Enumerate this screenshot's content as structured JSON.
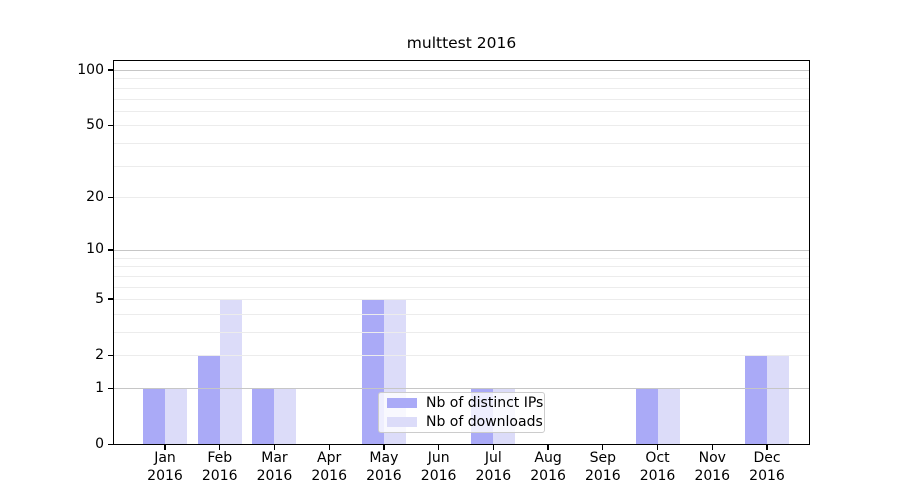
{
  "title": "multtest 2016",
  "colors": {
    "distinct_ips": "#aaaaf7",
    "downloads": "#dcdcf9",
    "grid_major": "#c6c6c6",
    "grid_minor": "#ececec",
    "axis": "#000000",
    "legend_border": "#cccccc"
  },
  "chart_data": {
    "type": "bar",
    "title": "multtest 2016",
    "categories": [
      "Jan 2016",
      "Feb 2016",
      "Mar 2016",
      "Apr 2016",
      "May 2016",
      "Jun 2016",
      "Jul 2016",
      "Aug 2016",
      "Sep 2016",
      "Oct 2016",
      "Nov 2016",
      "Dec 2016"
    ],
    "month_labels": [
      "Jan",
      "Feb",
      "Mar",
      "Apr",
      "May",
      "Jun",
      "Jul",
      "Aug",
      "Sep",
      "Oct",
      "Nov",
      "Dec"
    ],
    "year_label": "2016",
    "series": [
      {
        "name": "Nb of distinct IPs",
        "color": "#aaaaf7",
        "values": [
          1,
          2,
          1,
          0,
          5,
          0,
          1,
          0,
          0,
          1,
          0,
          2
        ]
      },
      {
        "name": "Nb of downloads",
        "color": "#dcdcf9",
        "values": [
          1,
          5,
          1,
          0,
          5,
          0,
          1,
          0,
          0,
          1,
          0,
          2
        ]
      }
    ],
    "xlabel": "",
    "ylabel": "",
    "yscale": "log1p",
    "ylim": [
      0,
      114
    ],
    "y_ticks": [
      0,
      1,
      2,
      5,
      10,
      20,
      50,
      100
    ],
    "y_major_gridlines": [
      1,
      10,
      100
    ],
    "y_minor_gridlines": [
      2,
      3,
      4,
      5,
      6,
      7,
      8,
      9,
      20,
      30,
      40,
      50,
      60,
      70,
      80,
      90
    ],
    "grid": true,
    "legend_position": "lower center (inside plot)"
  }
}
